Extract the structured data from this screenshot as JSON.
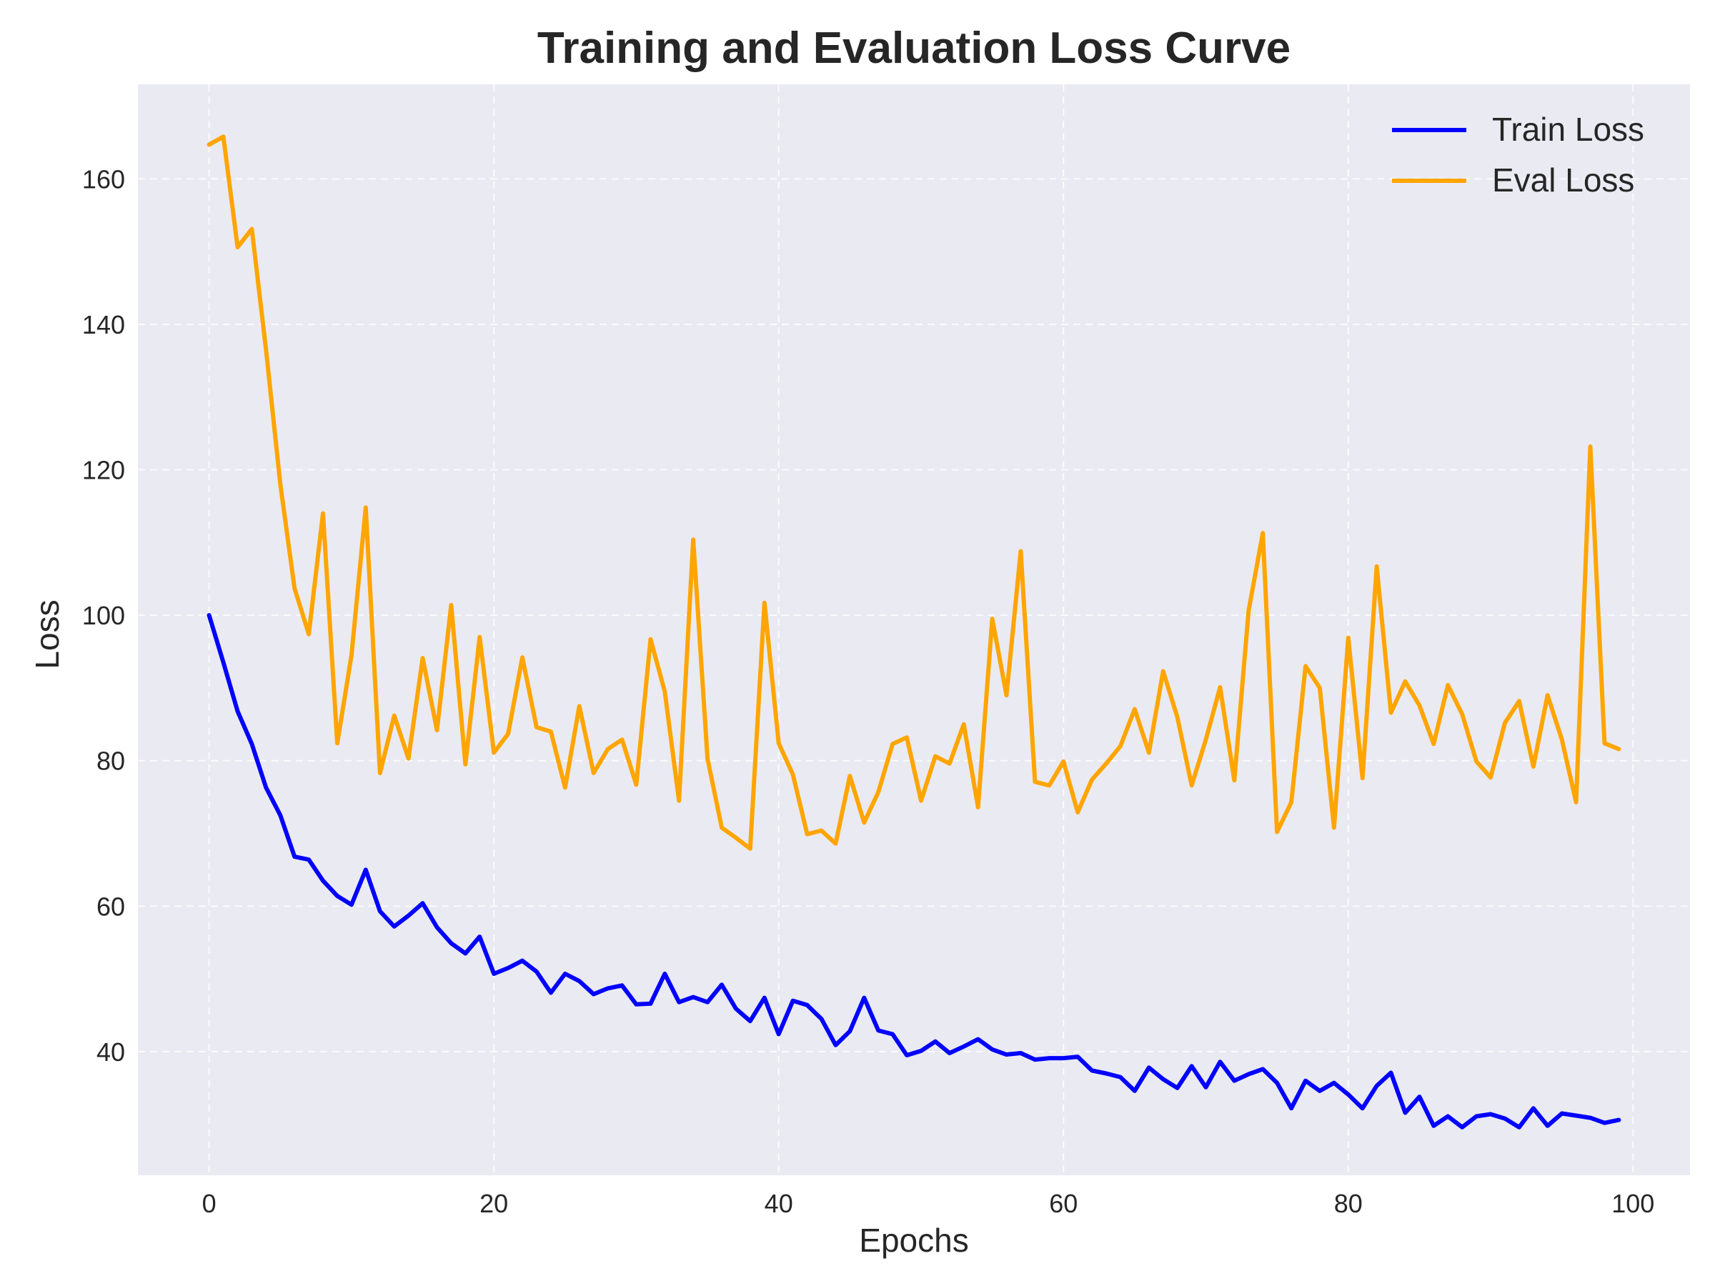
{
  "chart_data": {
    "type": "line",
    "title": "Training and Evaluation Loss Curve",
    "xlabel": "Epochs",
    "ylabel": "Loss",
    "xlim": [
      -5,
      104
    ],
    "ylim": [
      23,
      173
    ],
    "xticks": [
      0,
      20,
      40,
      60,
      80,
      100
    ],
    "yticks": [
      40,
      60,
      80,
      100,
      120,
      140,
      160
    ],
    "grid": true,
    "legend": "top-right",
    "x": [
      0,
      1,
      2,
      3,
      4,
      5,
      6,
      7,
      8,
      9,
      10,
      11,
      12,
      13,
      14,
      15,
      16,
      17,
      18,
      19,
      20,
      21,
      22,
      23,
      24,
      25,
      26,
      27,
      28,
      29,
      30,
      31,
      32,
      33,
      34,
      35,
      36,
      37,
      38,
      39,
      40,
      41,
      42,
      43,
      44,
      45,
      46,
      47,
      48,
      49,
      50,
      51,
      52,
      53,
      54,
      55,
      56,
      57,
      58,
      59,
      60,
      61,
      62,
      63,
      64,
      65,
      66,
      67,
      68,
      69,
      70,
      71,
      72,
      73,
      74,
      75,
      76,
      77,
      78,
      79,
      80,
      81,
      82,
      83,
      84,
      85,
      86,
      87,
      88,
      89,
      90,
      91,
      92,
      93,
      94,
      95,
      96,
      97,
      98,
      99
    ],
    "series": [
      {
        "name": "Train Loss",
        "color": "#0000ff",
        "values": [
          100,
          93.5,
          86.8,
          82.3,
          76.3,
          72.5,
          66.8,
          66.4,
          63.5,
          61.4,
          60.2,
          65,
          59.3,
          57.2,
          58.7,
          60.4,
          57.1,
          54.9,
          53.5,
          55.8,
          50.7,
          51.5,
          52.5,
          51,
          48.1,
          50.7,
          49.7,
          47.9,
          48.7,
          49.1,
          46.5,
          46.6,
          50.7,
          46.8,
          47.5,
          46.8,
          49.2,
          45.9,
          44.2,
          47.4,
          42.4,
          47,
          46.4,
          44.5,
          40.9,
          42.8,
          47.4,
          42.9,
          42.4,
          39.5,
          40.1,
          41.4,
          39.8,
          40.7,
          41.7,
          40.3,
          39.6,
          39.8,
          38.9,
          39.1,
          39.1,
          39.3,
          37.4,
          37,
          36.5,
          34.6,
          37.8,
          36.2,
          35,
          38,
          35.1,
          38.6,
          36,
          36.9,
          37.6,
          35.7,
          32.2,
          36,
          34.6,
          35.7,
          34.1,
          32.2,
          35.3,
          37.1,
          31.6,
          33.8,
          29.8,
          31.1,
          29.6,
          31.1,
          31.4,
          30.8,
          29.6,
          32.2,
          29.8,
          31.5,
          31.2,
          30.9,
          30.2,
          30.6
        ]
      },
      {
        "name": "Eval Loss",
        "color": "#ffa500",
        "values": [
          164.7,
          165.8,
          150.6,
          153.1,
          136.5,
          118,
          103.7,
          97.4,
          114,
          82.4,
          94.5,
          114.8,
          78.3,
          86.2,
          80.3,
          94.1,
          84.2,
          101.4,
          79.5,
          97,
          81.1,
          83.7,
          94.2,
          84.6,
          84,
          76.3,
          87.5,
          78.3,
          81.6,
          82.9,
          76.7,
          96.7,
          89.5,
          74.5,
          110.4,
          80.3,
          70.8,
          69.4,
          67.9,
          101.7,
          82.4,
          78.1,
          69.9,
          70.4,
          68.6,
          77.9,
          71.5,
          75.7,
          82.3,
          83.2,
          74.5,
          80.6,
          79.6,
          85,
          73.6,
          99.5,
          89,
          108.8,
          77.1,
          76.6,
          79.9,
          72.9,
          77.4,
          79.6,
          82,
          87.1,
          81.1,
          92.3,
          86,
          76.6,
          82.9,
          90.1,
          77.3,
          100.6,
          111.3,
          70.2,
          74.3,
          93,
          90,
          70.8,
          96.9,
          77.6,
          106.7,
          86.6,
          90.9,
          87.6,
          82.3,
          90.4,
          86.4,
          79.9,
          77.7,
          85.2,
          88.2,
          79.2,
          89,
          82.9,
          74.3,
          123.2,
          82.4,
          81.6
        ]
      }
    ]
  }
}
